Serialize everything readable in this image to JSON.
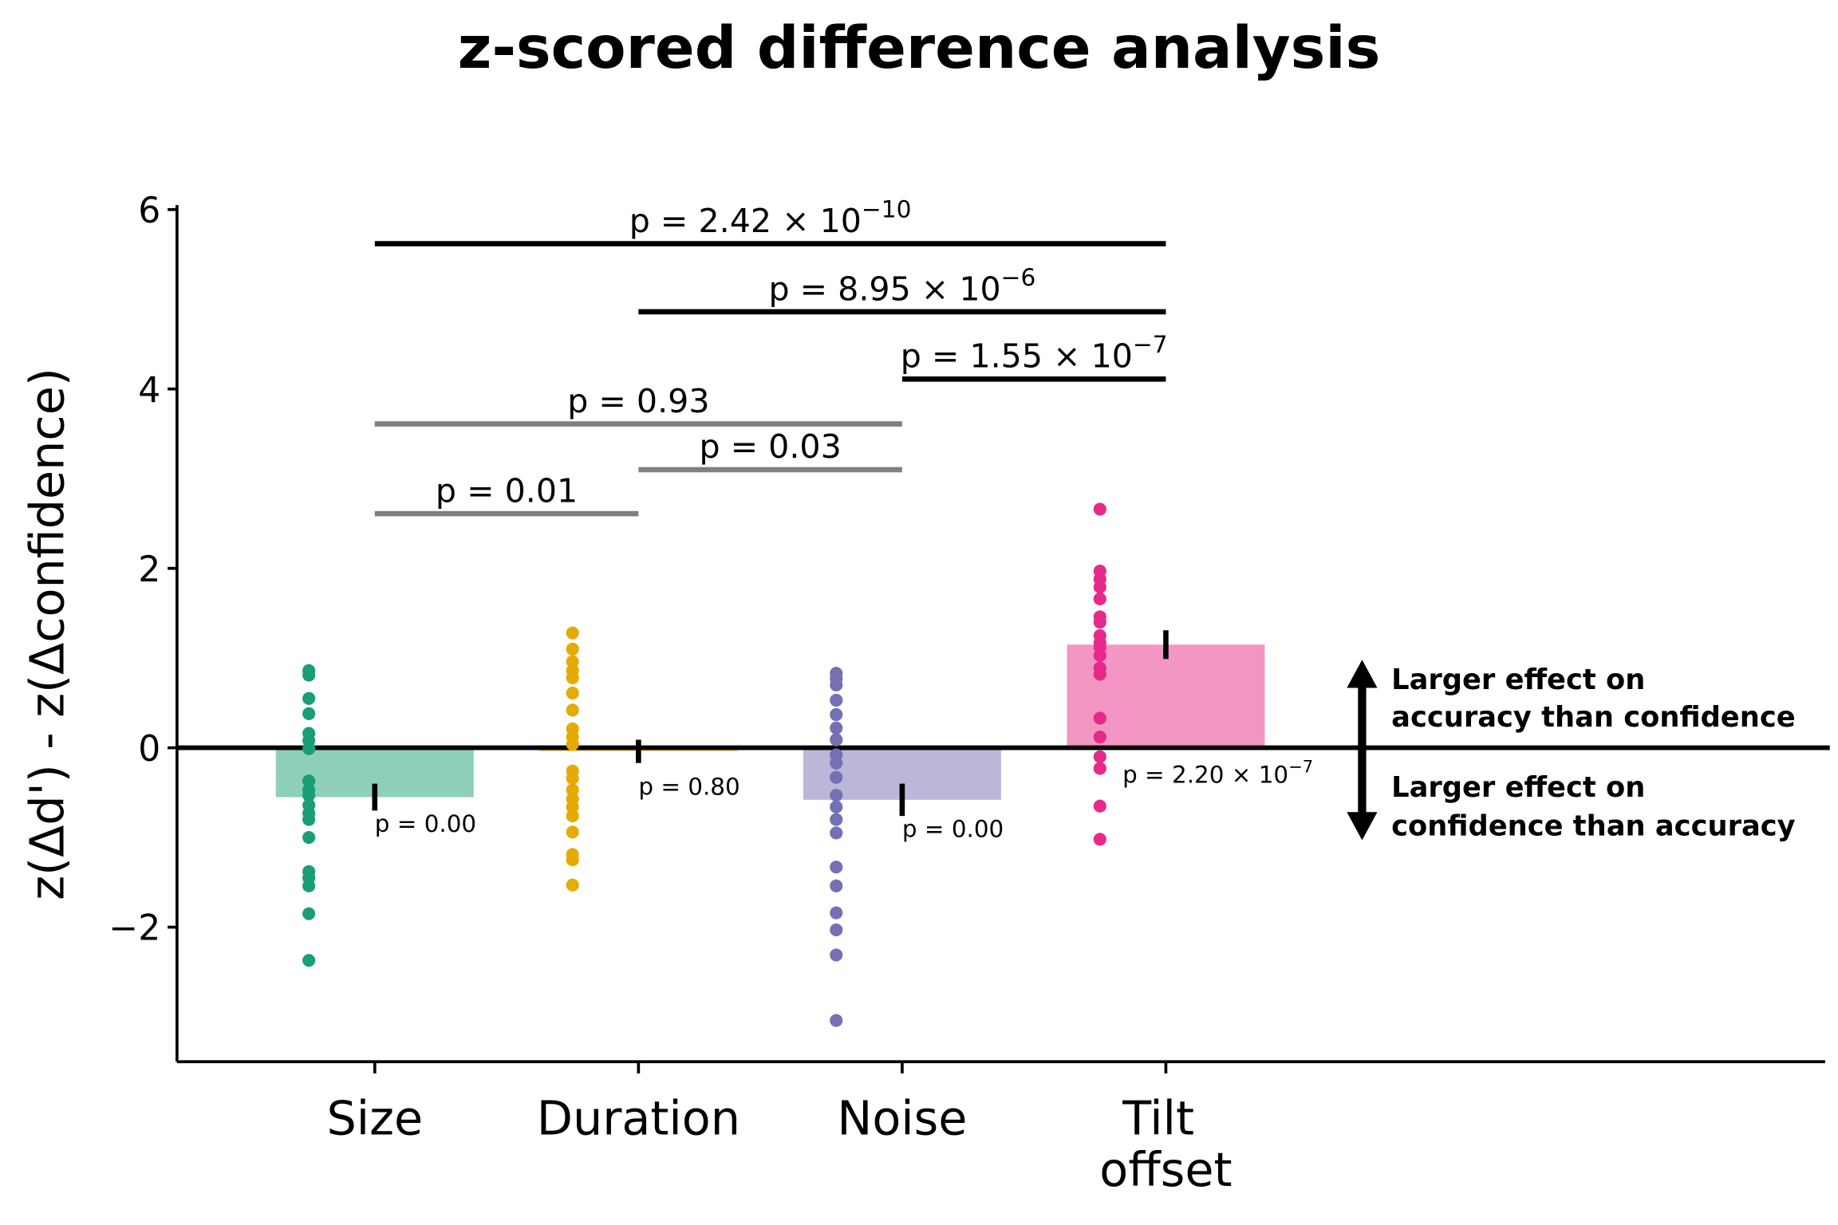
{
  "chart_data": {
    "type": "bar",
    "title": "z-scored difference analysis",
    "ylabel": "z(Δd') - z(Δconfidence)",
    "categories": [
      "Size",
      "Duration",
      "Noise",
      "Tilt offset"
    ],
    "xlim": [
      -0.75,
      5.5
    ],
    "ylim": [
      -3.5,
      6.05
    ],
    "yticks": [
      {
        "value": -2,
        "label": "−2"
      },
      0,
      2,
      4,
      6
    ],
    "hline": 0,
    "bars": {
      "values": [
        -0.55,
        -0.04,
        -0.58,
        1.15
      ],
      "errors": [
        0.15,
        0.13,
        0.18,
        0.16
      ],
      "colors": [
        "#8ecfba",
        "#f2d580",
        "#bab7d9",
        "#f396c4"
      ],
      "labels": [
        {
          "text": "p = 0.00"
        },
        {
          "text": "p = 0.80"
        },
        {
          "text": "p = 0.00"
        },
        {
          "text": "p = 2.20 × 10",
          "exponent": "−7"
        }
      ]
    },
    "points": [
      {
        "color": "#1b9e77",
        "values": [
          0.86,
          0.81,
          0.55,
          0.38,
          0.16,
          0.08,
          -0.01,
          -0.37,
          -0.47,
          -0.53,
          -0.64,
          -0.73,
          -0.8,
          -1.0,
          -1.38,
          -1.45,
          -1.54,
          -1.85,
          -2.37
        ]
      },
      {
        "color": "#e6ab02",
        "values": [
          1.28,
          1.1,
          0.96,
          0.86,
          0.78,
          0.61,
          0.42,
          0.21,
          0.12,
          0.04,
          -0.26,
          -0.34,
          -0.47,
          -0.57,
          -0.66,
          -0.76,
          -0.94,
          -1.19,
          -1.25,
          -1.53
        ]
      },
      {
        "color": "#7570b3",
        "values": [
          0.83,
          0.77,
          0.7,
          0.53,
          0.37,
          0.22,
          0.09,
          -0.08,
          -0.17,
          -0.33,
          -0.53,
          -0.66,
          -0.8,
          -0.95,
          -1.33,
          -1.54,
          -1.84,
          -2.03,
          -2.31,
          -3.04
        ]
      },
      {
        "color": "#e7298a",
        "values": [
          2.66,
          1.97,
          1.88,
          1.79,
          1.66,
          1.46,
          1.4,
          1.25,
          1.17,
          1.12,
          1.03,
          0.89,
          0.82,
          0.33,
          0.12,
          -0.1,
          -0.23,
          -0.65,
          -1.02
        ]
      }
    ],
    "comparisons": [
      {
        "from": "Size",
        "to": "Tilt offset",
        "y": 5.62,
        "label": "p = 2.42 × 10",
        "exponent": "−10",
        "color": "#000000"
      },
      {
        "from": "Duration",
        "to": "Tilt offset",
        "y": 4.86,
        "label": "p = 8.95 × 10",
        "exponent": "−6",
        "color": "#000000"
      },
      {
        "from": "Noise",
        "to": "Tilt offset",
        "y": 4.11,
        "label": "p = 1.55 × 10",
        "exponent": "−7",
        "color": "#000000"
      },
      {
        "from": "Size",
        "to": "Noise",
        "y": 3.61,
        "label": "p = 0.93",
        "color": "#808080"
      },
      {
        "from": "Duration",
        "to": "Noise",
        "y": 3.1,
        "label": "p = 0.03",
        "color": "#808080"
      },
      {
        "from": "Size",
        "to": "Duration",
        "y": 2.61,
        "label": "p = 0.01",
        "color": "#808080"
      }
    ],
    "annotations": {
      "up": [
        "Larger effect on",
        "accuracy than confidence"
      ],
      "down": [
        "Larger effect on",
        "confidence than accuracy"
      ]
    }
  }
}
